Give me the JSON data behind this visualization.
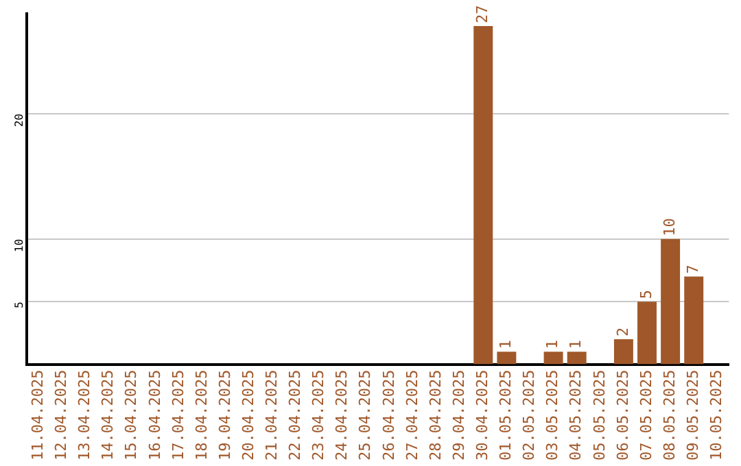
{
  "chart_data": {
    "type": "bar",
    "categories": [
      "11.04.2025",
      "12.04.2025",
      "13.04.2025",
      "14.04.2025",
      "15.04.2025",
      "16.04.2025",
      "17.04.2025",
      "18.04.2025",
      "19.04.2025",
      "20.04.2025",
      "21.04.2025",
      "22.04.2025",
      "23.04.2025",
      "24.04.2025",
      "25.04.2025",
      "26.04.2025",
      "27.04.2025",
      "28.04.2025",
      "29.04.2025",
      "30.04.2025",
      "01.05.2025",
      "02.05.2025",
      "03.05.2025",
      "04.05.2025",
      "05.05.2025",
      "06.05.2025",
      "07.05.2025",
      "08.05.2025",
      "09.05.2025",
      "10.05.2025"
    ],
    "values": [
      null,
      null,
      null,
      null,
      null,
      null,
      null,
      null,
      null,
      null,
      null,
      null,
      null,
      null,
      null,
      null,
      null,
      null,
      null,
      27,
      1,
      null,
      1,
      1,
      null,
      2,
      5,
      10,
      7,
      null
    ],
    "color": "#a0582a",
    "ylim": [
      0,
      28
    ],
    "yticks": [
      5,
      10,
      20
    ],
    "grid": "y",
    "legend": false,
    "data_labels": true
  }
}
